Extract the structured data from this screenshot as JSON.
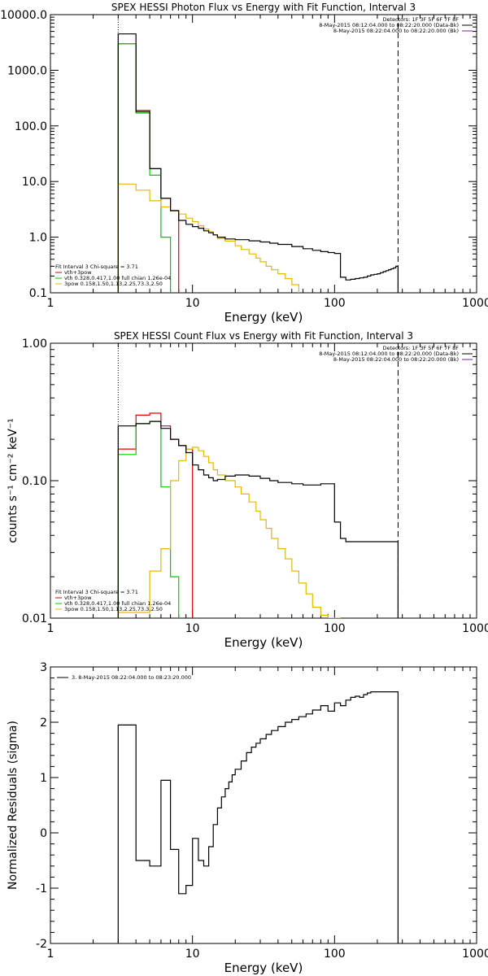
{
  "chart_data": [
    {
      "type": "line",
      "title": "SPEX HESSI Photon Flux vs Energy with Fit Function, Interval 3",
      "xlabel": "Energy (keV)",
      "ylabel": "",
      "xscale": "log",
      "yscale": "log",
      "xlim": [
        1,
        1000
      ],
      "ylim": [
        0.1,
        10000
      ],
      "xticks": [
        {
          "v": 1,
          "label": "1"
        },
        {
          "v": 10,
          "label": "10"
        },
        {
          "v": 100,
          "label": "100"
        },
        {
          "v": 1000,
          "label": "1000"
        }
      ],
      "yticks": [
        {
          "v": 0.1,
          "label": "0.1"
        },
        {
          "v": 1,
          "label": "1.0"
        },
        {
          "v": 10,
          "label": "10.0"
        },
        {
          "v": 100,
          "label": "100.0"
        },
        {
          "v": 1000,
          "label": "1000.0"
        },
        {
          "v": 10000,
          "label": "10000.0"
        }
      ],
      "vlines": [
        {
          "x": 3,
          "style": "dotted"
        },
        {
          "x": 280,
          "style": "dashed"
        }
      ],
      "legend_top_right": [
        "Detectors: 1F 3F 5F 6F 7F 8F",
        "8-May-2015 08:12:04.000 to 08:22:20.000 (Data-Bk)",
        "8-May-2015 08:22:04.000 to 08:22:20.000 (Bk)"
      ],
      "legend_bottom_left": [
        {
          "label": "Fit Interval 3   Chi-square = 3.71",
          "color": ""
        },
        {
          "label": "vth+3pow",
          "color": "#e00000"
        },
        {
          "label": "vth 0.328,0.417,1.00  full chian 1.26e-04",
          "color": "#00cc00"
        },
        {
          "label": "3pow 0.158,1.50,1.13,2.25,73.3,2.50",
          "color": "#e6b800"
        }
      ],
      "series": [
        {
          "color": "#000000",
          "edges": [
            3,
            4,
            5,
            6,
            7,
            8,
            9,
            10,
            11,
            12,
            13,
            14,
            15,
            17,
            20,
            25,
            30,
            35,
            40,
            50,
            60,
            70,
            80,
            90,
            100,
            110,
            120,
            130,
            140,
            150,
            160,
            170,
            180,
            190,
            200,
            210,
            220,
            230,
            240,
            250,
            260,
            270,
            280
          ],
          "values": [
            4500,
            180,
            17,
            5,
            3,
            2,
            1.7,
            1.55,
            1.45,
            1.3,
            1.2,
            1.1,
            1.0,
            0.93,
            0.9,
            0.86,
            0.82,
            0.78,
            0.74,
            0.68,
            0.62,
            0.58,
            0.55,
            0.53,
            0.51,
            0.19,
            0.17,
            0.175,
            0.18,
            0.185,
            0.19,
            0.2,
            0.21,
            0.215,
            0.22,
            0.23,
            0.24,
            0.25,
            0.26,
            0.27,
            0.28,
            0.3
          ]
        },
        {
          "color": "#e00000",
          "edges": [
            3,
            4,
            5,
            6,
            7,
            8
          ],
          "values": [
            3000,
            190,
            17,
            5,
            3
          ]
        },
        {
          "color": "#00cc00",
          "edges": [
            3,
            4,
            5,
            6,
            7
          ],
          "values": [
            3000,
            170,
            13,
            1
          ]
        },
        {
          "color": "#e6b800",
          "edges": [
            3,
            4,
            5,
            6,
            7,
            8,
            9,
            10,
            11,
            12,
            13,
            14,
            15,
            17,
            20,
            22,
            25,
            28,
            30,
            33,
            36,
            40,
            45,
            50,
            56
          ],
          "values": [
            9,
            7,
            4.5,
            3.5,
            3,
            2.6,
            2.2,
            1.9,
            1.6,
            1.4,
            1.25,
            1.1,
            0.95,
            0.85,
            0.7,
            0.6,
            0.5,
            0.42,
            0.36,
            0.3,
            0.26,
            0.22,
            0.18,
            0.14
          ]
        }
      ]
    },
    {
      "type": "line",
      "title": "SPEX HESSI Count Flux vs Energy with Fit Function, Interval 3",
      "xlabel": "Energy (keV)",
      "ylabel": "counts s⁻¹ cm⁻² keV⁻¹",
      "xscale": "log",
      "yscale": "log",
      "xlim": [
        1,
        1000
      ],
      "ylim": [
        0.01,
        1
      ],
      "xticks": [
        {
          "v": 1,
          "label": "1"
        },
        {
          "v": 10,
          "label": "10"
        },
        {
          "v": 100,
          "label": "100"
        },
        {
          "v": 1000,
          "label": "1000"
        }
      ],
      "yticks": [
        {
          "v": 0.01,
          "label": "0.01"
        },
        {
          "v": 0.1,
          "label": "0.10"
        },
        {
          "v": 1,
          "label": "1.00"
        }
      ],
      "vlines": [
        {
          "x": 3,
          "style": "dotted"
        },
        {
          "x": 280,
          "style": "dashed"
        }
      ],
      "legend_top_right": [
        "Detectors: 1F 3F 5F 6F 7F 8F",
        "8-May-2015 08:12:04.000 to 08:22:20.000 (Data-Bk)",
        "8-May-2015 08:22:04.000 to 08:22:20.000 (Bk)"
      ],
      "legend_bottom_left": [
        {
          "label": "Fit Interval 3   Chi-square = 3.71",
          "color": ""
        },
        {
          "label": "vth+3pow",
          "color": "#e00000"
        },
        {
          "label": "vth 0.328,0.417,1.00  full chian 1.26e-04",
          "color": "#00cc00"
        },
        {
          "label": "3pow 0.158,1.50,1.13,2.25,73.3,2.50",
          "color": "#e6b800"
        }
      ],
      "series": [
        {
          "color": "#000000",
          "edges": [
            3,
            4,
            5,
            6,
            7,
            8,
            9,
            10,
            11,
            12,
            13,
            14,
            15,
            17,
            20,
            25,
            30,
            35,
            40,
            50,
            60,
            70,
            80,
            90,
            100,
            110,
            120,
            130,
            140,
            150,
            160,
            170,
            180,
            190,
            200,
            210,
            220,
            230,
            240,
            250,
            260,
            270,
            280
          ],
          "values": [
            0.25,
            0.26,
            0.27,
            0.24,
            0.2,
            0.18,
            0.16,
            0.13,
            0.12,
            0.11,
            0.105,
            0.1,
            0.102,
            0.108,
            0.11,
            0.108,
            0.104,
            0.1,
            0.097,
            0.095,
            0.093,
            0.093,
            0.095,
            0.095,
            0.05,
            0.038,
            0.036,
            0.036,
            0.036,
            0.036,
            0.036,
            0.036,
            0.036,
            0.036,
            0.036,
            0.036,
            0.036,
            0.036,
            0.036,
            0.036,
            0.036,
            0.036
          ]
        },
        {
          "color": "#e00000",
          "edges": [
            3,
            4,
            5,
            6,
            7,
            8,
            9,
            10
          ],
          "values": [
            0.17,
            0.3,
            0.31,
            0.25,
            0.2,
            0.18,
            0.17
          ]
        },
        {
          "color": "#00cc00",
          "edges": [
            3,
            4,
            5,
            6,
            7,
            8
          ],
          "values": [
            0.155,
            0.26,
            0.27,
            0.09,
            0.02
          ]
        },
        {
          "color": "#e6b800",
          "edges": [
            3,
            4,
            5,
            6,
            7,
            8,
            9,
            10,
            11,
            12,
            13,
            14,
            15,
            17,
            20,
            22,
            25,
            28,
            30,
            33,
            36,
            40,
            45,
            50,
            56,
            63,
            70,
            80,
            90,
            100,
            110
          ],
          "values": [
            0.011,
            0.011,
            0.022,
            0.032,
            0.1,
            0.14,
            0.17,
            0.175,
            0.165,
            0.15,
            0.135,
            0.12,
            0.11,
            0.1,
            0.09,
            0.08,
            0.07,
            0.06,
            0.052,
            0.045,
            0.038,
            0.032,
            0.027,
            0.022,
            0.018,
            0.015,
            0.012,
            0.0105,
            0.01,
            0.01
          ]
        }
      ]
    },
    {
      "type": "line",
      "title": "",
      "xlabel": "Energy (keV)",
      "ylabel": "Normalized Residuals (sigma)",
      "xscale": "log",
      "yscale": "linear",
      "xlim": [
        1,
        1000
      ],
      "ylim": [
        -2,
        3
      ],
      "xticks": [
        {
          "v": 1,
          "label": "1"
        },
        {
          "v": 10,
          "label": "10"
        },
        {
          "v": 100,
          "label": "100"
        },
        {
          "v": 1000,
          "label": "1000"
        }
      ],
      "yticks": [
        {
          "v": -2,
          "label": "-2"
        },
        {
          "v": -1,
          "label": "-1"
        },
        {
          "v": 0,
          "label": "0"
        },
        {
          "v": 1,
          "label": "1"
        },
        {
          "v": 2,
          "label": "2"
        },
        {
          "v": 3,
          "label": "3"
        }
      ],
      "vlines": [],
      "legend_top_left": "3.  8-May-2015 08:22:04.000 to 08:23:20.000",
      "series": [
        {
          "color": "#000000",
          "edges": [
            3,
            4,
            5,
            6,
            7,
            8,
            9,
            10,
            11,
            12,
            13,
            14,
            15,
            16,
            17,
            18,
            19,
            20,
            22,
            24,
            26,
            28,
            30,
            33,
            36,
            40,
            45,
            50,
            56,
            63,
            70,
            80,
            90,
            100,
            110,
            120,
            130,
            140,
            150,
            160,
            170,
            180,
            190,
            200,
            220,
            250,
            280
          ],
          "values": [
            1.95,
            -0.5,
            -0.6,
            0.95,
            -0.3,
            -1.1,
            -0.95,
            -0.1,
            -0.5,
            -0.6,
            -0.25,
            0.15,
            0.45,
            0.65,
            0.8,
            0.92,
            1.05,
            1.15,
            1.3,
            1.45,
            1.55,
            1.62,
            1.7,
            1.78,
            1.85,
            1.92,
            2.0,
            2.05,
            2.1,
            2.15,
            2.22,
            2.3,
            2.2,
            2.35,
            2.3,
            2.4,
            2.45,
            2.47,
            2.45,
            2.5,
            2.53,
            2.55,
            2.55,
            2.55,
            2.55,
            2.55
          ]
        }
      ]
    }
  ]
}
